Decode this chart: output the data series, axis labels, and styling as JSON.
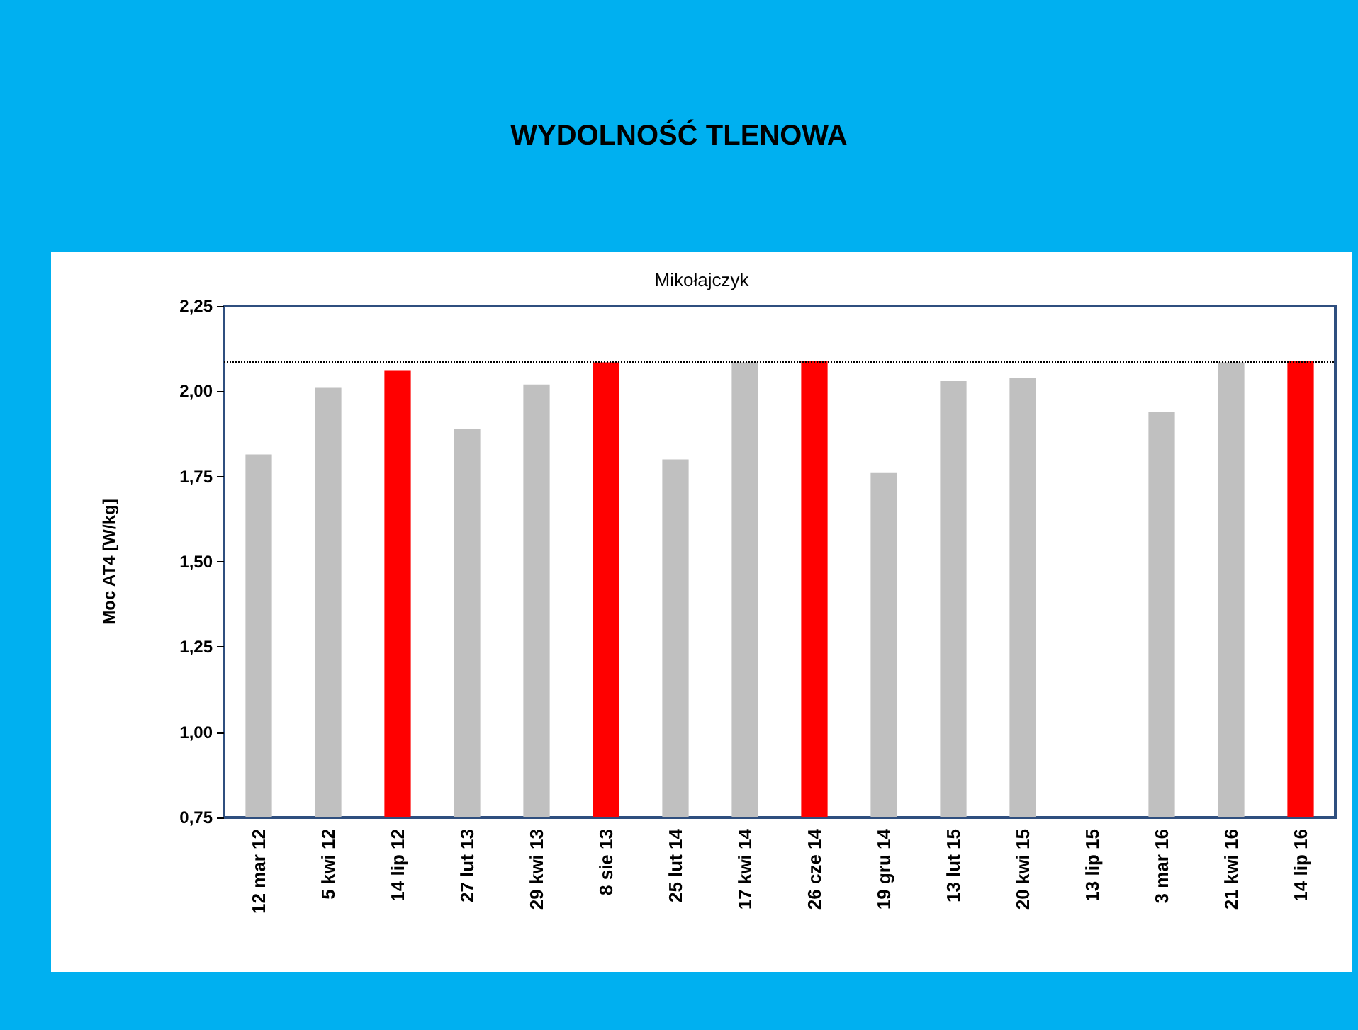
{
  "chart_data": {
    "type": "bar",
    "title": "WYDOLNOŚĆ TLENOWA",
    "subtitle": "Mikołajczyk",
    "ylabel": "Moc AT4 [W/kg]",
    "categories": [
      "12 mar 12",
      "5 kwi 12",
      "14 lip 12",
      "27 lut 13",
      "29 kwi 13",
      "8 sie 13",
      "25 lut 14",
      "17 kwi 14",
      "26 cze 14",
      "19 gru 14",
      "13 lut 15",
      "20 kwi 15",
      "13 lip 15",
      "3 mar 16",
      "21 kwi 16",
      "14 lip 16"
    ],
    "values": [
      1.815,
      2.01,
      2.06,
      1.89,
      2.02,
      2.085,
      1.8,
      2.085,
      2.09,
      1.76,
      2.03,
      2.04,
      null,
      1.94,
      2.085,
      2.09
    ],
    "colors": [
      "#c0c0c0",
      "#c0c0c0",
      "#ff0000",
      "#c0c0c0",
      "#c0c0c0",
      "#ff0000",
      "#c0c0c0",
      "#c0c0c0",
      "#ff0000",
      "#c0c0c0",
      "#c0c0c0",
      "#c0c0c0",
      "#c0c0c0",
      "#c0c0c0",
      "#c0c0c0",
      "#ff0000"
    ],
    "ylim": [
      0.75,
      2.25
    ],
    "yticks": [
      {
        "value": 0.75,
        "label": "0,75"
      },
      {
        "value": 1,
        "label": "1,00"
      },
      {
        "value": 1.25,
        "label": "1,25"
      },
      {
        "value": 1.5,
        "label": "1,50"
      },
      {
        "value": 1.75,
        "label": "1,75"
      },
      {
        "value": 2,
        "label": "2,00"
      },
      {
        "value": 2.25,
        "label": "2,25"
      }
    ],
    "ref_lines": [
      {
        "axis": "y",
        "value": 2.085,
        "color": "#000000",
        "line_style": "dotted"
      }
    ],
    "grid": false
  }
}
